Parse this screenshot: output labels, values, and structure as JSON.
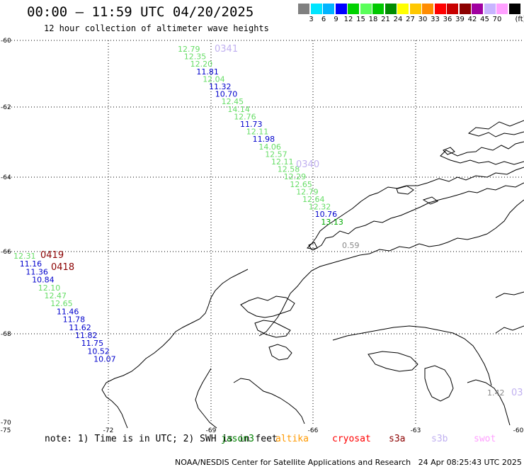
{
  "header": {
    "title": "00:00 – 11:59 UTC 04/20/2025",
    "subtitle": "12 hour collection of altimeter wave heights"
  },
  "legend": {
    "unit": "(ft)",
    "entries": [
      {
        "label": "",
        "color": "#808080"
      },
      {
        "label": "3",
        "color": "#00e5ff"
      },
      {
        "label": "6",
        "color": "#00b4ff"
      },
      {
        "label": "9",
        "color": "#0000ff"
      },
      {
        "label": "12",
        "color": "#00d200"
      },
      {
        "label": "15",
        "color": "#5aff5a"
      },
      {
        "label": "18",
        "color": "#00c800"
      },
      {
        "label": "21",
        "color": "#008c00"
      },
      {
        "label": "24",
        "color": "#ffff00"
      },
      {
        "label": "27",
        "color": "#ffc800"
      },
      {
        "label": "30",
        "color": "#ff8c00"
      },
      {
        "label": "33",
        "color": "#ff0000"
      },
      {
        "label": "36",
        "color": "#c80000"
      },
      {
        "label": "39",
        "color": "#8c0000"
      },
      {
        "label": "42",
        "color": "#a000a0"
      },
      {
        "label": "45",
        "color": "#c8b4ff"
      },
      {
        "label": "70",
        "color": "#ffa0ff"
      },
      {
        "label": "",
        "color": "#000000"
      }
    ]
  },
  "map": {
    "lat_labels": [
      "-60",
      "-62",
      "-64",
      "-66",
      "-68",
      "-70"
    ],
    "lon_labels": [
      "-75",
      "-72",
      "-69",
      "-66",
      "-63",
      "-60"
    ],
    "grid": true,
    "colors": {
      "low": "#0000cc",
      "mid": "#66dd66",
      "high": "#00aa00",
      "gray": "#888888",
      "marker_dark": "#8b0000",
      "marker_light": "#c0b0f0"
    },
    "tracks": [
      {
        "values": [
          "12.79",
          "12.35",
          "12.20",
          "11.81",
          "12.04",
          "11.32",
          "10.70",
          "12.45",
          "14.14",
          "12.76",
          "11.73",
          "12.11",
          "11.98",
          "14.06",
          "12.57",
          "12.11",
          "12.58",
          "12.29",
          "12.65",
          "12.79",
          "12.64",
          "12.32",
          "10.76",
          "13.13"
        ],
        "tiers": [
          "mid",
          "mid",
          "mid",
          "low",
          "mid",
          "low",
          "low",
          "mid",
          "mid",
          "mid",
          "low",
          "mid",
          "low",
          "mid",
          "mid",
          "mid",
          "mid",
          "mid",
          "mid",
          "mid",
          "mid",
          "mid",
          "low",
          "high"
        ]
      },
      {
        "values": [
          "12.31",
          "11.16",
          "11.36",
          "10.84",
          "12.10",
          "12.47",
          "12.65",
          "11.46",
          "11.78",
          "11.62",
          "11.82",
          "11.75",
          "10.52",
          "10.07"
        ],
        "tiers": [
          "mid",
          "low",
          "low",
          "low",
          "mid",
          "mid",
          "mid",
          "low",
          "low",
          "low",
          "low",
          "low",
          "low",
          "low"
        ]
      }
    ],
    "pass_labels": [
      {
        "text": "0341",
        "tier": "marker_light"
      },
      {
        "text": "0340",
        "tier": "marker_light"
      },
      {
        "text": "0419",
        "tier": "marker_dark"
      },
      {
        "text": "0418",
        "tier": "marker_dark"
      },
      {
        "text": "03",
        "tier": "marker_light"
      }
    ],
    "isolated_values": [
      {
        "text": "0.59",
        "tier": "gray"
      },
      {
        "text": "1.42",
        "tier": "gray"
      }
    ]
  },
  "footer_note": {
    "note": "note: 1) Time is in UTC; 2) SWH is in feet",
    "missions": [
      {
        "name": "jason3",
        "color": "#008000"
      },
      {
        "name": "altika",
        "color": "#ff9900"
      },
      {
        "name": "cryosat",
        "color": "#ff0000"
      },
      {
        "name": "s3a",
        "color": "#8b0000"
      },
      {
        "name": "s3b",
        "color": "#c0b0f0"
      },
      {
        "name": "swot",
        "color": "#ffa0ff"
      }
    ]
  },
  "footer": {
    "credit": "NOAA/NESDIS Center for Satellite Applications and Research",
    "timestamp": "24 Apr 08:25:43 UTC 2025"
  }
}
